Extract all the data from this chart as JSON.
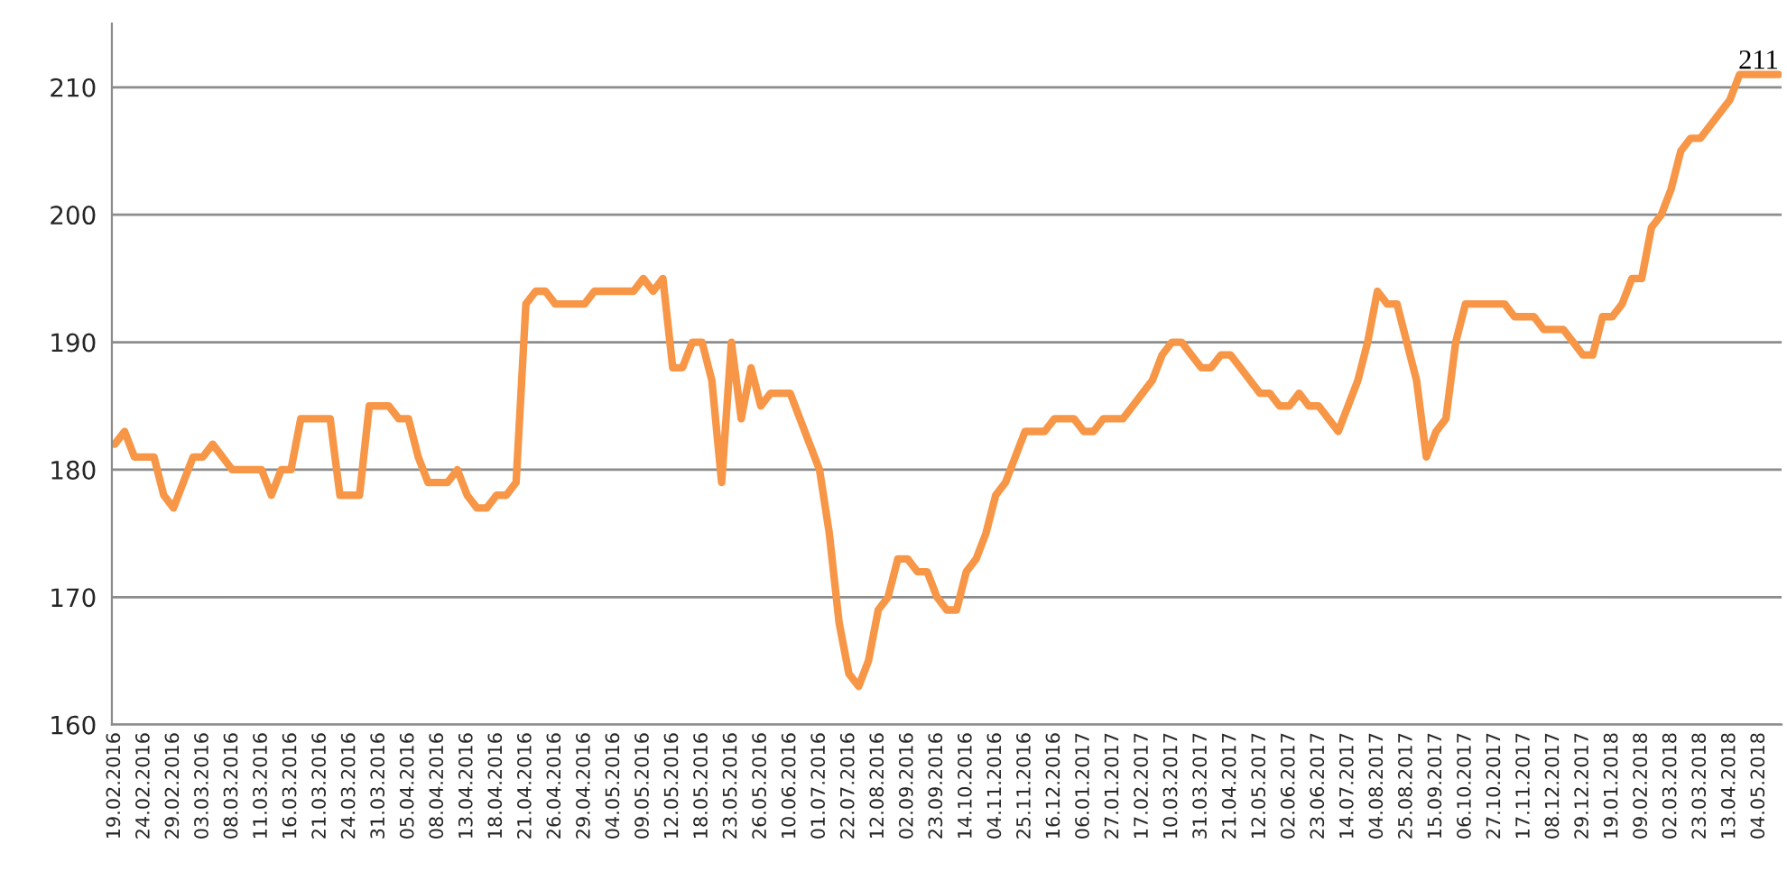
{
  "chart_data": {
    "type": "line",
    "categories": [
      "19.02.2016",
      null,
      null,
      "24.02.2016",
      null,
      null,
      "29.02.2016",
      null,
      null,
      "03.03.2016",
      null,
      null,
      "08.03.2016",
      null,
      null,
      "11.03.2016",
      null,
      null,
      "16.03.2016",
      null,
      null,
      "21.03.2016",
      null,
      null,
      "24.03.2016",
      null,
      null,
      "31.03.2016",
      null,
      null,
      "05.04.2016",
      null,
      null,
      "08.04.2016",
      null,
      null,
      "13.04.2016",
      null,
      null,
      "18.04.2016",
      null,
      null,
      "21.04.2016",
      null,
      null,
      "26.04.2016",
      null,
      null,
      "29.04.2016",
      null,
      null,
      "04.05.2016",
      null,
      null,
      "09.05.2016",
      null,
      null,
      "12.05.2016",
      null,
      null,
      "18.05.2016",
      null,
      null,
      "23.05.2016",
      null,
      null,
      "26.05.2016",
      null,
      null,
      "10.06.2016",
      null,
      null,
      "01.07.2016",
      null,
      null,
      "22.07.2016",
      null,
      null,
      "12.08.2016",
      null,
      null,
      "02.09.2016",
      null,
      null,
      "23.09.2016",
      null,
      null,
      "14.10.2016",
      null,
      null,
      "04.11.2016",
      null,
      null,
      "25.11.2016",
      null,
      null,
      "16.12.2016",
      null,
      null,
      "06.01.2017",
      null,
      null,
      "27.01.2017",
      null,
      null,
      "17.02.2017",
      null,
      null,
      "10.03.2017",
      null,
      null,
      "31.03.2017",
      null,
      null,
      "21.04.2017",
      null,
      null,
      "12.05.2017",
      null,
      null,
      "02.06.2017",
      null,
      null,
      "23.06.2017",
      null,
      null,
      "14.07.2017",
      null,
      null,
      "04.08.2017",
      null,
      null,
      "25.08.2017",
      null,
      null,
      "15.09.2017",
      null,
      null,
      "06.10.2017",
      null,
      null,
      "27.10.2017",
      null,
      null,
      "17.11.2017",
      null,
      null,
      "08.12.2017",
      null,
      null,
      "29.12.2017",
      null,
      null,
      "19.01.2018",
      null,
      null,
      "09.02.2018",
      null,
      null,
      "02.03.2018",
      null,
      null,
      "23.03.2018",
      null,
      null,
      "13.04.2018",
      null,
      null,
      "04.05.2018",
      null,
      null
    ],
    "series": [
      {
        "color": "#f79646",
        "values": [
          182,
          183,
          181,
          181,
          181,
          178,
          177,
          179,
          181,
          181,
          182,
          181,
          180,
          180,
          180,
          180,
          178,
          180,
          180,
          184,
          184,
          184,
          184,
          178,
          178,
          178,
          185,
          185,
          185,
          184,
          184,
          181,
          179,
          179,
          179,
          180,
          178,
          177,
          177,
          178,
          178,
          179,
          193,
          194,
          194,
          193,
          193,
          193,
          193,
          194,
          194,
          194,
          194,
          194,
          195,
          194,
          195,
          188,
          188,
          190,
          190,
          187,
          179,
          190,
          184,
          188,
          185,
          186,
          186,
          186,
          184,
          182,
          180,
          175,
          168,
          164,
          163,
          165,
          169,
          170,
          173,
          173,
          172,
          172,
          170,
          169,
          169,
          172,
          173,
          175,
          178,
          179,
          181,
          183,
          183,
          183,
          184,
          184,
          184,
          183,
          183,
          184,
          184,
          184,
          185,
          186,
          187,
          189,
          190,
          190,
          189,
          188,
          188,
          189,
          189,
          188,
          187,
          186,
          186,
          185,
          185,
          186,
          185,
          185,
          184,
          183,
          185,
          187,
          190,
          194,
          193,
          193,
          190,
          187,
          181,
          183,
          184,
          190,
          193,
          193,
          193,
          193,
          193,
          192,
          192,
          192,
          191,
          191,
          191,
          190,
          189,
          189,
          192,
          192,
          193,
          195,
          195,
          199,
          200,
          202,
          205,
          206,
          206,
          207,
          208,
          209,
          211,
          211,
          211,
          211,
          211
        ],
        "value_labels": [
          null,
          null,
          null,
          null,
          null,
          null,
          null,
          null,
          null,
          null,
          null,
          null,
          null,
          null,
          null,
          null,
          null,
          null,
          null,
          null,
          null,
          null,
          null,
          null,
          null,
          null,
          null,
          null,
          null,
          null,
          null,
          null,
          null,
          null,
          null,
          null,
          null,
          null,
          null,
          null,
          null,
          null,
          null,
          null,
          null,
          null,
          null,
          null,
          null,
          null,
          null,
          null,
          null,
          null,
          null,
          null,
          null,
          null,
          null,
          null,
          null,
          null,
          null,
          null,
          null,
          null,
          null,
          null,
          null,
          null,
          null,
          null,
          null,
          null,
          null,
          null,
          null,
          null,
          null,
          null,
          null,
          null,
          null,
          null,
          null,
          null,
          null,
          null,
          null,
          null,
          null,
          null,
          null,
          null,
          null,
          null,
          null,
          null,
          null,
          null,
          null,
          null,
          null,
          null,
          null,
          null,
          null,
          null,
          null,
          null,
          null,
          null,
          null,
          null,
          null,
          null,
          null,
          null,
          null,
          null,
          null,
          null,
          null,
          null,
          null,
          null,
          null,
          null,
          null,
          null,
          null,
          null,
          null,
          null,
          null,
          null,
          null,
          null,
          null,
          null,
          null,
          null,
          null,
          null,
          null,
          null,
          null,
          null,
          null,
          null,
          null,
          null,
          null,
          null,
          null,
          null,
          null,
          null,
          null,
          null,
          null,
          null,
          null,
          null,
          null,
          null,
          null,
          null,
          null,
          null,
          "211"
        ]
      }
    ],
    "ylim": [
      160,
      215
    ],
    "yticks": [
      160,
      170,
      180,
      190,
      200,
      210
    ],
    "grid": "y"
  }
}
